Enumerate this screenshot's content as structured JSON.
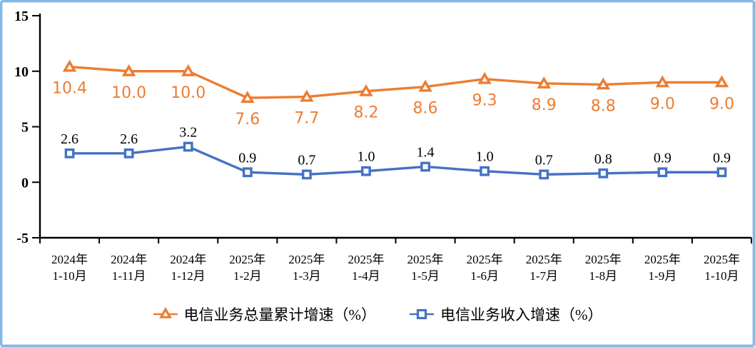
{
  "chart_data": {
    "type": "line",
    "title": "",
    "xlabel": "",
    "ylabel": "",
    "ylim": [
      -5,
      15
    ],
    "yticks": [
      15,
      10,
      5,
      0,
      -5
    ],
    "grid": false,
    "legend_position": "bottom",
    "categories": [
      {
        "line1": "2024年",
        "line2": "1-10月"
      },
      {
        "line1": "2024年",
        "line2": "1-11月"
      },
      {
        "line1": "2024年",
        "line2": "1-12月"
      },
      {
        "line1": "2025年",
        "line2": "1-2月"
      },
      {
        "line1": "2025年",
        "line2": "1-3月"
      },
      {
        "line1": "2025年",
        "line2": "1-4月"
      },
      {
        "line1": "2025年",
        "line2": "1-5月"
      },
      {
        "line1": "2025年",
        "line2": "1-6月"
      },
      {
        "line1": "2025年",
        "line2": "1-7月"
      },
      {
        "line1": "2025年",
        "line2": "1-8月"
      },
      {
        "line1": "2025年",
        "line2": "1-9月"
      },
      {
        "line1": "2025年",
        "line2": "1-10月"
      }
    ],
    "series": [
      {
        "name": "电信业务总量累计增速（%）",
        "values": [
          10.4,
          10.0,
          10.0,
          7.6,
          7.7,
          8.2,
          8.6,
          9.3,
          8.9,
          8.8,
          9.0,
          9.0
        ],
        "color": "#ED7D31",
        "marker": "triangle",
        "label_color": "#ED7D31",
        "label_position": "below",
        "label_font": "sans"
      },
      {
        "name": "电信业务收入增速（%）",
        "values": [
          2.6,
          2.6,
          3.2,
          0.9,
          0.7,
          1.0,
          1.4,
          1.0,
          0.7,
          0.8,
          0.9,
          0.9
        ],
        "color": "#4472C4",
        "marker": "square",
        "label_color": "#000000",
        "label_position": "above",
        "label_font": "serif"
      }
    ]
  },
  "frame": {
    "background": "#FFFFFF",
    "border_color": "#85B8E2",
    "axis_color": "#000000"
  }
}
